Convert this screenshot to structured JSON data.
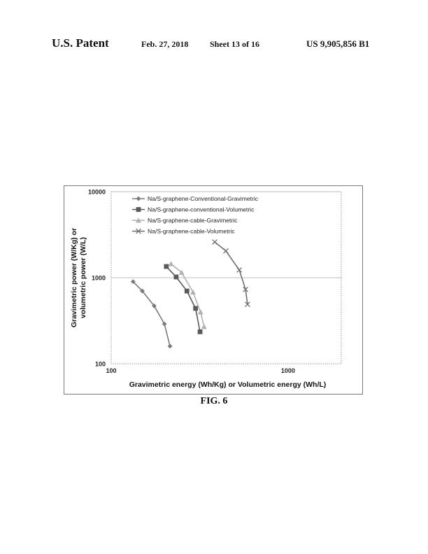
{
  "header": {
    "patent_label": "U.S. Patent",
    "date": "Feb. 27, 2018",
    "sheet": "Sheet 13 of 16",
    "patent_number": "US 9,905,856 B1"
  },
  "figure": {
    "caption": "FIG. 6"
  },
  "chart_data": {
    "type": "line",
    "x_scale": "log",
    "y_scale": "log",
    "xlabel": "Gravimetric energy (Wh/Kg) or Volumetric energy (Wh/L)",
    "ylabel": "Gravimetric power (W/Kg) or volumetric power (W/L)",
    "ylabel_lines": [
      "Gravimetric power (W/Kg) or",
      "volumetric power (W/L)"
    ],
    "xlim": [
      100,
      2000
    ],
    "ylim": [
      100,
      10000
    ],
    "x_ticks": [
      100,
      1000
    ],
    "x_tick_labels": [
      "100",
      "1000"
    ],
    "y_ticks": [
      100,
      1000,
      10000
    ],
    "y_tick_labels": [
      "100",
      "1000",
      "10000"
    ],
    "grid": "horizontal",
    "legend_position": "top-left",
    "series": [
      {
        "name": "Na/S-graphene-Conventional-Gravimetric",
        "color": "#7a7a7a",
        "marker": "diamond",
        "x": [
          133,
          150,
          175,
          200,
          215
        ],
        "y": [
          900,
          700,
          470,
          290,
          160
        ]
      },
      {
        "name": "Na/S-graphene-conventional-Volumetric",
        "color": "#5a5a5a",
        "marker": "square",
        "x": [
          205,
          233,
          268,
          300,
          318
        ],
        "y": [
          1350,
          1020,
          700,
          440,
          235
        ]
      },
      {
        "name": "Na/S-graphene-cable-Gravimetric",
        "color": "#b0b0b0",
        "marker": "triangle",
        "x": [
          218,
          250,
          290,
          320,
          335
        ],
        "y": [
          1450,
          1150,
          680,
          400,
          270
        ]
      },
      {
        "name": "Na/S-graphene-cable-Volumetric",
        "color": "#6e6e6e",
        "marker": "x",
        "x": [
          385,
          445,
          530,
          575,
          590
        ],
        "y": [
          2600,
          2050,
          1230,
          730,
          490
        ]
      }
    ]
  }
}
